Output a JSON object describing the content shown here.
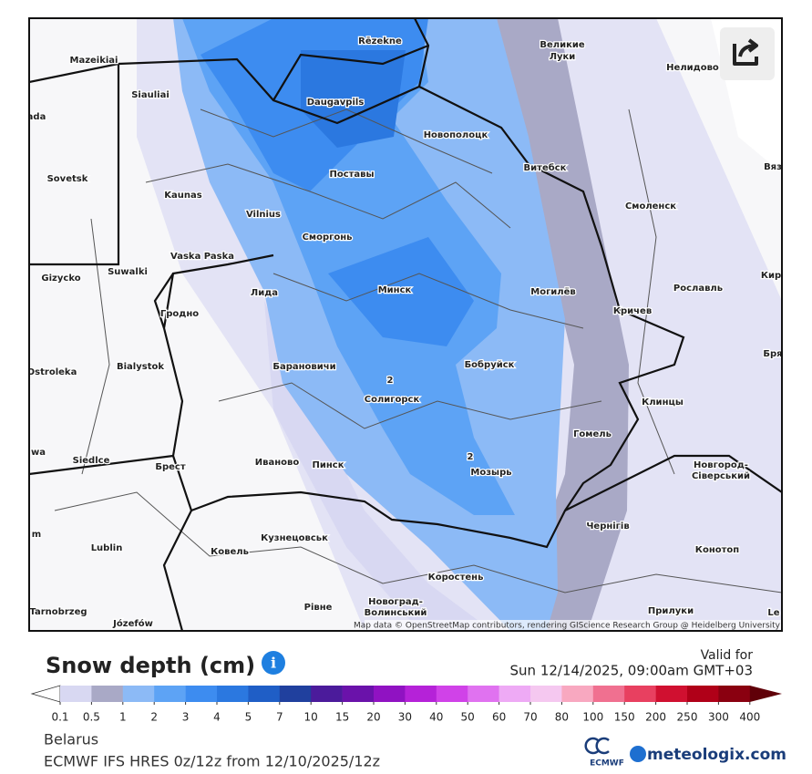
{
  "map": {
    "labels": [
      "Mazeikiai",
      "Rēzekne",
      "Великие",
      "Луки",
      "Нелидово",
      "Siauliai",
      "Daugavpils",
      "ada",
      "Новополоцк",
      "Sovetsk",
      "Витебск",
      "Вяз",
      "Поставы",
      "Kaunas",
      "Смоленск",
      "Vilnius",
      "Сморгонь",
      "Vaska Paska",
      "Gizycko",
      "Suwalki",
      "Лида",
      "Минск",
      "Могилёв",
      "Рославль",
      "Кир",
      "Гродно",
      "Кричев",
      "Бря",
      "Ostroleka",
      "Bialystok",
      "Барановичи",
      "Бобруйск",
      "2",
      "Солигорск",
      "Клинцы",
      "Гомель",
      "2",
      "wa",
      "Siedlce",
      "Брест",
      "Иваново",
      "Пинск",
      "Мозырь",
      "Новгород-",
      "Сіверський",
      "Чернігів",
      "m",
      "Lublin",
      "Ковель",
      "Кузнецовськ",
      "Конотоп",
      "Коростень",
      "Новоград-",
      "Волинський",
      "Рівне",
      "Прилуки",
      "Tarnobrzeg",
      "Józefów",
      "Le"
    ],
    "attribution": "Map data © OpenStreetMap contributors, rendering GIScience Research Group @ Heidelberg University"
  },
  "legend": {
    "title": "Snow depth (cm)",
    "valid_for": "Valid for",
    "valid_time": "Sun 12/14/2025, 09:00am GMT+03",
    "ticks": [
      0.1,
      0.5,
      1,
      2,
      3,
      4,
      5,
      7,
      10,
      15,
      20,
      30,
      40,
      50,
      60,
      70,
      80,
      100,
      150,
      200,
      250,
      300,
      400
    ],
    "colors": [
      "#ffffff",
      "#d8d8f2",
      "#a9a9c6",
      "#8cbaf6",
      "#5da3f5",
      "#3d8cf0",
      "#2b78e0",
      "#1f5ec6",
      "#20409e",
      "#4b1b9b",
      "#6a12aa",
      "#9012c2",
      "#b522d8",
      "#d042e8",
      "#e072f0",
      "#eeaaf5",
      "#f5c8f0",
      "#f8a8c0",
      "#f07090",
      "#e84060",
      "#d01030",
      "#b00018",
      "#8a0010",
      "#600008"
    ]
  },
  "footer": {
    "region": "Belarus",
    "model": "ECMWF IFS HRES 0z/12z from 12/10/2025/12z",
    "logo_small": "ECMWF",
    "logo": "meteologix.com"
  }
}
